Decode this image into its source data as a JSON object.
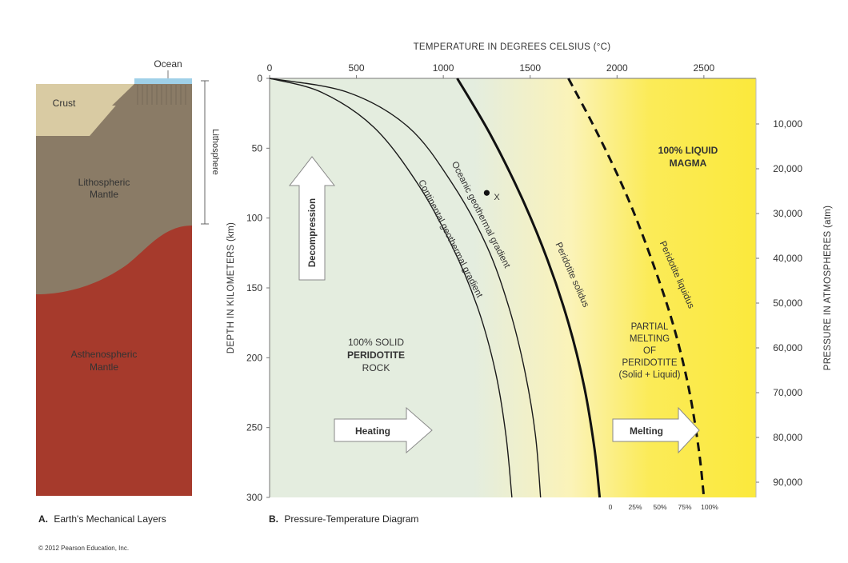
{
  "panel_a": {
    "ocean": "Ocean",
    "crust": "Crust",
    "lithosphere": "Lithosphere",
    "lithospheric_mantle": [
      "Lithospheric",
      "Mantle"
    ],
    "asthenospheric_mantle": [
      "Asthenospheric",
      "Mantle"
    ],
    "caption_letter": "A.",
    "caption_text": "Earth's Mechanical Layers"
  },
  "panel_b": {
    "caption_letter": "B.",
    "caption_text": "Pressure-Temperature Diagram",
    "top_axis_title": "TEMPERATURE IN DEGREES CELSIUS (°C)",
    "left_axis_title": "DEPTH IN KILOMETERS (km)",
    "right_axis_title": "PRESSURE IN ATMOSPHERES (atm)",
    "solid_label": {
      "line1": "100% SOLID",
      "line2": "PERIDOTITE",
      "line3": "ROCK"
    },
    "liquid_label": {
      "line1": "100% LIQUID",
      "line2": "MAGMA"
    },
    "partial_label": [
      "PARTIAL",
      "MELTING",
      "OF",
      "PERIDOTITE",
      "(Solid + Liquid)"
    ],
    "point_label": "X",
    "arrows": {
      "decompression": "Decompression",
      "heating": "Heating",
      "melting": "Melting"
    },
    "melt_fraction_ticks": [
      "0",
      "25%",
      "50%",
      "75%",
      "100%"
    ]
  },
  "copyright": "© 2012 Pearson Education, Inc.",
  "chart_data": {
    "type": "line",
    "xlabel": "TEMPERATURE IN DEGREES CELSIUS (°C)",
    "ylabel": "DEPTH IN KILOMETERS (km)",
    "y2label": "PRESSURE IN ATMOSPHERES (atm)",
    "xlim": [
      0,
      2800
    ],
    "ylim": [
      0,
      300
    ],
    "y_inverted": true,
    "x_ticks": [
      0,
      500,
      1000,
      1500,
      2000,
      2500
    ],
    "y_ticks": [
      0,
      50,
      100,
      150,
      200,
      250,
      300
    ],
    "y2_ticks": [
      "10,000",
      "20,000",
      "30,000",
      "40,000",
      "50,000",
      "60,000",
      "70,000",
      "80,000",
      "90,000"
    ],
    "y2_values": [
      10000,
      20000,
      30000,
      40000,
      50000,
      60000,
      70000,
      80000,
      90000
    ],
    "series": [
      {
        "name": "Continental geothermal gradient",
        "style": "thin",
        "x": [
          0,
          300,
          600,
          850,
          1050,
          1200,
          1300,
          1360,
          1395
        ],
        "y": [
          0,
          10,
          35,
          75,
          120,
          165,
          210,
          255,
          300
        ]
      },
      {
        "name": "Oceanic geothermal gradient",
        "style": "thin",
        "x": [
          0,
          450,
          800,
          1050,
          1250,
          1380,
          1470,
          1530,
          1560
        ],
        "y": [
          0,
          10,
          35,
          75,
          120,
          165,
          210,
          255,
          300
        ]
      },
      {
        "name": "Peridotite solidus",
        "style": "thick",
        "x": [
          1080,
          1270,
          1450,
          1600,
          1720,
          1810,
          1870,
          1900
        ],
        "y": [
          0,
          40,
          85,
          130,
          175,
          220,
          265,
          300
        ]
      },
      {
        "name": "Peridotite liquidus",
        "style": "dashed",
        "x": [
          1720,
          1890,
          2060,
          2200,
          2320,
          2410,
          2470,
          2500
        ],
        "y": [
          0,
          40,
          85,
          130,
          175,
          220,
          265,
          300
        ]
      }
    ],
    "points": [
      {
        "label": "X",
        "x": 1250,
        "y": 82
      }
    ],
    "grid": false
  }
}
